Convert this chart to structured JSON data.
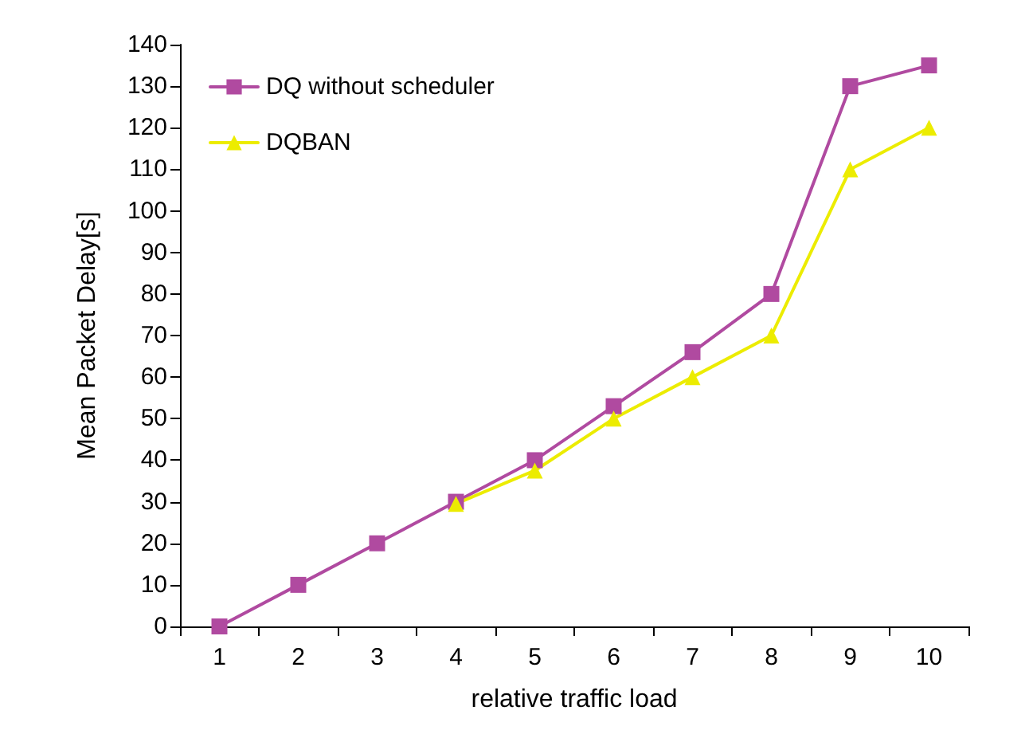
{
  "chart_data": {
    "type": "line",
    "xlabel": "relative traffic load",
    "ylabel": "Mean Packet Delay[s]",
    "categories": [
      "1",
      "2",
      "3",
      "4",
      "5",
      "6",
      "7",
      "8",
      "9",
      "10"
    ],
    "series": [
      {
        "name": "DQ without scheduler",
        "color": "#b04aa0",
        "marker": "square",
        "values": [
          0,
          10,
          20,
          30,
          40,
          53,
          66,
          80,
          130,
          135
        ]
      },
      {
        "name": "DQBAN",
        "color": "#ecec00",
        "marker": "triangle",
        "values": [
          null,
          null,
          null,
          29.5,
          37.5,
          50,
          60,
          70,
          110,
          120
        ]
      }
    ],
    "ylim": [
      0,
      140
    ],
    "yticks": [
      0,
      10,
      20,
      30,
      40,
      50,
      60,
      70,
      80,
      90,
      100,
      110,
      120,
      130,
      140
    ],
    "grid": false,
    "legend": "top left",
    "line_style": "solid"
  }
}
